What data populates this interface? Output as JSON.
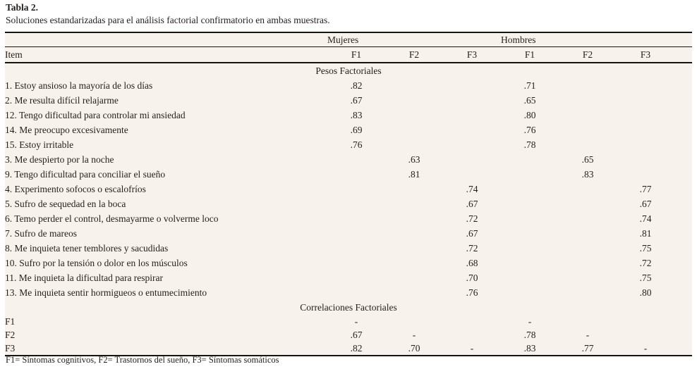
{
  "title": "Tabla 2.",
  "subtitle": "Soluciones estandarizadas para el análisis factorial confirmatorio en ambas muestras.",
  "footnote": "F1= Síntomas cognitivos, F2= Trastornos del sueño, F3= Síntomas somáticos",
  "colors": {
    "page_bg": "#ffffff",
    "table_bg": "#f8f2ec",
    "text": "#241f1c",
    "rule": "#18140f"
  },
  "table": {
    "group_headers": [
      "Mujeres",
      "Hombres"
    ],
    "item_header": "Item",
    "factor_headers": [
      "F1",
      "F2",
      "F3",
      "F1",
      "F2",
      "F3"
    ],
    "sections": [
      {
        "label": "Pesos Factoriales",
        "rows": [
          {
            "item": "1. Estoy ansioso la mayoría de los días",
            "values": [
              ".82",
              "",
              "",
              ".71",
              "",
              ""
            ]
          },
          {
            "item": "2. Me resulta difícil relajarme",
            "values": [
              ".67",
              "",
              "",
              ".65",
              "",
              ""
            ]
          },
          {
            "item": "12. Tengo dificultad para controlar mi ansiedad",
            "values": [
              ".83",
              "",
              "",
              ".80",
              "",
              ""
            ]
          },
          {
            "item": "14. Me preocupo excesivamente",
            "values": [
              ".69",
              "",
              "",
              ".76",
              "",
              ""
            ]
          },
          {
            "item": "15. Estoy irritable",
            "values": [
              ".76",
              "",
              "",
              ".78",
              "",
              ""
            ]
          },
          {
            "item": "3. Me despierto por la noche",
            "values": [
              "",
              ".63",
              "",
              "",
              ".65",
              ""
            ]
          },
          {
            "item": "9. Tengo dificultad para conciliar el sueño",
            "values": [
              "",
              ".81",
              "",
              "",
              ".83",
              ""
            ]
          },
          {
            "item": "4. Experimento sofocos o escalofríos",
            "values": [
              "",
              "",
              ".74",
              "",
              "",
              ".77"
            ]
          },
          {
            "item": "5. Sufro de sequedad en la boca",
            "values": [
              "",
              "",
              ".67",
              "",
              "",
              ".67"
            ]
          },
          {
            "item": "6. Temo perder el control, desmayarme o volverme loco",
            "values": [
              "",
              "",
              ".72",
              "",
              "",
              ".74"
            ]
          },
          {
            "item": "7. Sufro de mareos",
            "values": [
              "",
              "",
              ".67",
              "",
              "",
              ".81"
            ]
          },
          {
            "item": "8. Me inquieta tener temblores y sacudidas",
            "values": [
              "",
              "",
              ".72",
              "",
              "",
              ".75"
            ]
          },
          {
            "item": "10. Sufro por la tensión o dolor en los músculos",
            "values": [
              "",
              "",
              ".68",
              "",
              "",
              ".72"
            ]
          },
          {
            "item": "11. Me inquieta la dificultad para respirar",
            "values": [
              "",
              "",
              ".70",
              "",
              "",
              ".75"
            ]
          },
          {
            "item": "13. Me inquieta sentir hormigueos o entumecimiento",
            "values": [
              "",
              "",
              ".76",
              "",
              "",
              ".80"
            ]
          }
        ]
      },
      {
        "label": "Correlaciones Factoriales",
        "rows": [
          {
            "item": "F1",
            "values": [
              "-",
              "",
              "",
              "-",
              "",
              ""
            ]
          },
          {
            "item": "F2",
            "values": [
              ".67",
              "-",
              "",
              ".78",
              "-",
              ""
            ]
          },
          {
            "item": "F3",
            "values": [
              ".82",
              ".70",
              "-",
              ".83",
              ".77",
              "-"
            ]
          }
        ]
      }
    ]
  }
}
